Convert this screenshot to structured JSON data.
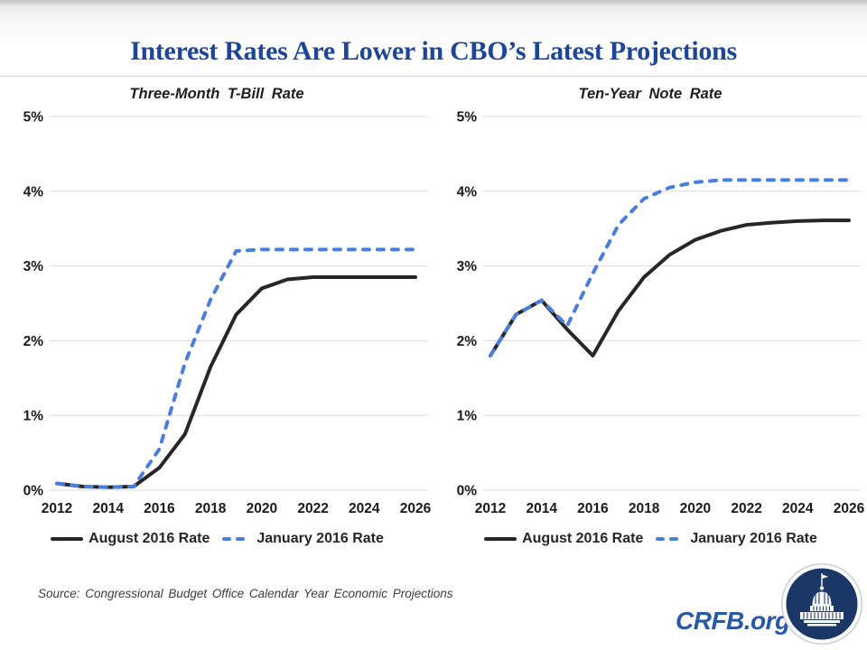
{
  "page": {
    "title": "Interest Rates Are Lower in CBO’s Latest Projections",
    "source_note": "Source: Congressional Budget Office Calendar Year Economic Projections",
    "brand": {
      "site": "CRFB.org",
      "logo_name": "capitol-dome-logo"
    }
  },
  "colors": {
    "title_blue": "#1d4699",
    "brand_blue": "#2a58a8",
    "logo_navy": "#1b3766",
    "grid": "#d9d9d9",
    "axis_text": "#1a1a1a"
  },
  "chart_data": [
    {
      "type": "line",
      "title": "Three-Month T-Bill Rate",
      "xlim": [
        2012,
        2026
      ],
      "ylim": [
        0,
        5
      ],
      "grid": true,
      "legend_position": "bottom",
      "x": [
        2012,
        2013,
        2014,
        2015,
        2016,
        2017,
        2018,
        2019,
        2020,
        2021,
        2022,
        2023,
        2024,
        2025,
        2026
      ],
      "x_ticks": [
        "2012",
        "2014",
        "2016",
        "2018",
        "2020",
        "2022",
        "2024",
        "2026"
      ],
      "y_ticks": [
        "0%",
        "1%",
        "2%",
        "3%",
        "4%",
        "5%"
      ],
      "series": [
        {
          "name": "August 2016 Rate",
          "style": "solid",
          "color": "#262626",
          "values": [
            0.09,
            0.05,
            0.04,
            0.05,
            0.3,
            0.75,
            1.65,
            2.35,
            2.7,
            2.82,
            2.85,
            2.85,
            2.85,
            2.85,
            2.85
          ]
        },
        {
          "name": "January 2016 Rate",
          "style": "dashed",
          "color": "#4a7ddc",
          "values": [
            0.09,
            0.05,
            0.04,
            0.05,
            0.55,
            1.7,
            2.55,
            3.2,
            3.22,
            3.22,
            3.22,
            3.22,
            3.22,
            3.22,
            3.22
          ]
        }
      ]
    },
    {
      "type": "line",
      "title": "Ten-Year Note Rate",
      "xlim": [
        2012,
        2026
      ],
      "ylim": [
        0,
        5
      ],
      "grid": true,
      "legend_position": "bottom",
      "x": [
        2012,
        2013,
        2014,
        2015,
        2016,
        2017,
        2018,
        2019,
        2020,
        2021,
        2022,
        2023,
        2024,
        2025,
        2026
      ],
      "x_ticks": [
        "2012",
        "2014",
        "2016",
        "2018",
        "2020",
        "2022",
        "2024",
        "2026"
      ],
      "y_ticks": [
        "0%",
        "1%",
        "2%",
        "3%",
        "4%",
        "5%"
      ],
      "series": [
        {
          "name": "August 2016 Rate",
          "style": "solid",
          "color": "#262626",
          "values": [
            1.8,
            2.35,
            2.54,
            2.15,
            1.8,
            2.4,
            2.85,
            3.15,
            3.35,
            3.47,
            3.55,
            3.58,
            3.6,
            3.61,
            3.61
          ]
        },
        {
          "name": "January 2016 Rate",
          "style": "dashed",
          "color": "#4a7ddc",
          "values": [
            1.8,
            2.35,
            2.54,
            2.2,
            2.9,
            3.55,
            3.9,
            4.05,
            4.12,
            4.15,
            4.15,
            4.15,
            4.15,
            4.15,
            4.15
          ]
        }
      ]
    }
  ]
}
